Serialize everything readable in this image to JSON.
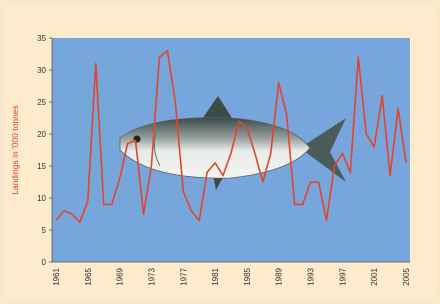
{
  "chart_data": {
    "type": "line",
    "y_label": "Landings in '000 tonnes",
    "categories": [
      "1961",
      null,
      null,
      null,
      "1965",
      null,
      null,
      null,
      "1969",
      null,
      null,
      null,
      "1973",
      null,
      null,
      null,
      "1977",
      null,
      null,
      null,
      "1981",
      null,
      null,
      null,
      "1985",
      null,
      null,
      null,
      "1989",
      null,
      null,
      null,
      "1993",
      null,
      null,
      null,
      "1997",
      null,
      null,
      null,
      "2001",
      null,
      null,
      null,
      "2005"
    ],
    "values": [
      6.5,
      8,
      7.5,
      6.2,
      9.5,
      31,
      9,
      9,
      13,
      18.5,
      19,
      7.5,
      15,
      32,
      33,
      25,
      11,
      8,
      6.5,
      14,
      15.5,
      13.5,
      17,
      22,
      21,
      17,
      12.5,
      17,
      28,
      23,
      9,
      9,
      12.5,
      12.5,
      6.5,
      15,
      17,
      14,
      32,
      20,
      18,
      26,
      13.5,
      24,
      15.5
    ],
    "color": "#e2462a",
    "ylim": [
      0,
      35
    ],
    "yticks": [
      0,
      5,
      10,
      15,
      20,
      25,
      30,
      35
    ]
  }
}
